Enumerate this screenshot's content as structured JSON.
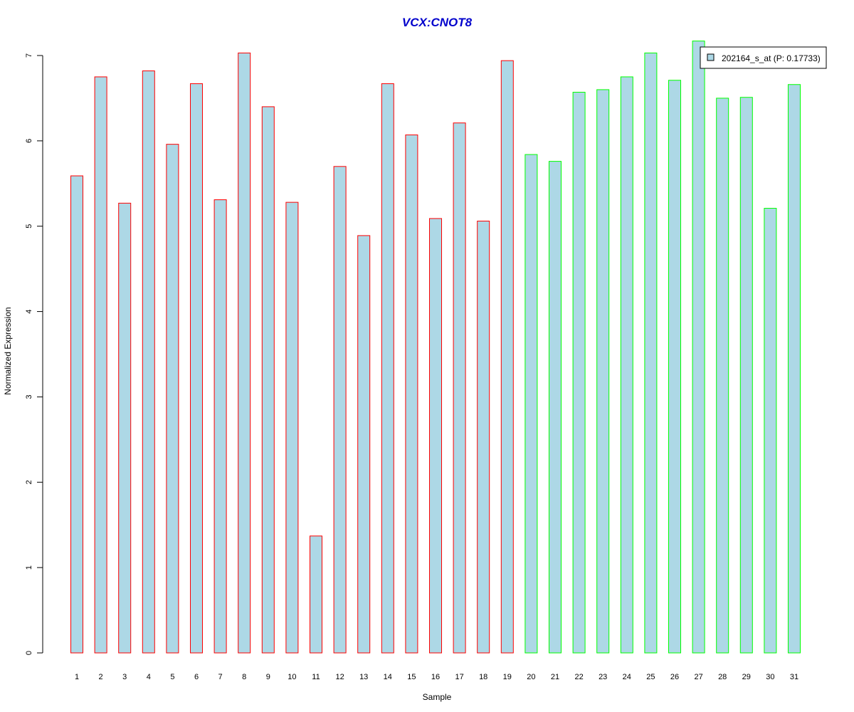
{
  "chart_data": {
    "type": "bar",
    "title": "VCX:CNOT8",
    "xlabel": "Sample",
    "ylabel": "Normalized Expression",
    "ylim": [
      0,
      7.2
    ],
    "yticks": [
      0,
      1,
      2,
      3,
      4,
      5,
      6,
      7
    ],
    "categories": [
      "1",
      "2",
      "3",
      "4",
      "5",
      "6",
      "7",
      "8",
      "9",
      "10",
      "11",
      "12",
      "13",
      "14",
      "15",
      "16",
      "17",
      "18",
      "19",
      "20",
      "21",
      "22",
      "23",
      "24",
      "25",
      "26",
      "27",
      "28",
      "29",
      "30",
      "31"
    ],
    "values": [
      5.59,
      6.75,
      5.27,
      6.82,
      5.96,
      6.67,
      5.31,
      7.03,
      6.4,
      5.28,
      1.37,
      5.7,
      4.89,
      6.67,
      6.07,
      5.09,
      6.21,
      5.06,
      6.94,
      5.84,
      5.76,
      6.57,
      6.6,
      6.75,
      7.03,
      6.71,
      7.17,
      6.5,
      6.51,
      5.21,
      6.66
    ],
    "groups": [
      "red",
      "red",
      "red",
      "red",
      "red",
      "red",
      "red",
      "red",
      "red",
      "red",
      "red",
      "red",
      "red",
      "red",
      "red",
      "red",
      "red",
      "red",
      "red",
      "green",
      "green",
      "green",
      "green",
      "green",
      "green",
      "green",
      "green",
      "green",
      "green",
      "green",
      "green"
    ],
    "colors": {
      "fill": "#add8e6",
      "red_border": "#ff0000",
      "green_border": "#00ff00",
      "title": "#0000cc",
      "legend_border": "#000000"
    },
    "legend": {
      "placement": "top-right",
      "label": "202164_s_at (P: 0.17733)"
    },
    "grid": false
  }
}
